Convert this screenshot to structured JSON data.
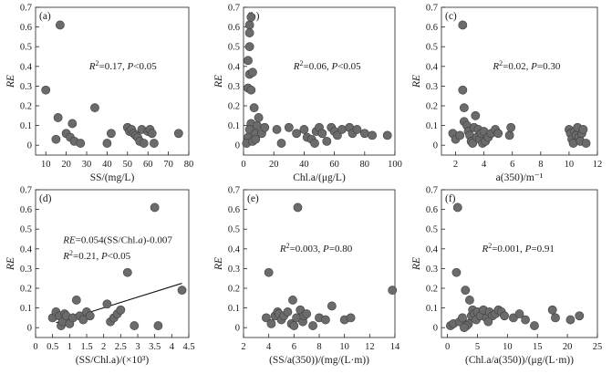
{
  "chart_data": [
    {
      "type": "scatter",
      "panel_label": "(a)",
      "xlabel": "SS/(mg/L)",
      "ylabel": "RE",
      "xlim": [
        5,
        80
      ],
      "xticks": [
        10,
        20,
        30,
        40,
        50,
        60,
        70,
        80
      ],
      "ylim": [
        -0.05,
        0.7
      ],
      "yticks": [
        0,
        0.1,
        0.2,
        0.3,
        0.4,
        0.5,
        0.6,
        0.7
      ],
      "stat_r2": "0.17",
      "stat_p": "P<0.05",
      "points": [
        [
          10,
          0.28
        ],
        [
          15,
          0.03
        ],
        [
          16,
          0.14
        ],
        [
          17,
          0.61
        ],
        [
          20,
          0.06
        ],
        [
          22,
          0.04
        ],
        [
          23,
          0.11
        ],
        [
          24,
          0.02
        ],
        [
          27,
          0.01
        ],
        [
          34,
          0.19
        ],
        [
          40,
          0.01
        ],
        [
          42,
          0.06
        ],
        [
          50,
          0.09
        ],
        [
          51,
          0.07
        ],
        [
          52,
          0.08
        ],
        [
          53,
          0.06
        ],
        [
          54,
          0.05
        ],
        [
          55,
          0.04
        ],
        [
          56,
          0.02
        ],
        [
          57,
          0.08
        ],
        [
          58,
          0.01
        ],
        [
          60,
          0.07
        ],
        [
          61,
          0.08
        ],
        [
          62,
          0.06
        ],
        [
          63,
          0.01
        ],
        [
          75,
          0.06
        ]
      ]
    },
    {
      "type": "scatter",
      "panel_label": "(b)",
      "xlabel": "Chl.a/(μg/L)",
      "ylabel": "RE",
      "xlim": [
        0,
        100
      ],
      "xticks": [
        0,
        20,
        40,
        60,
        80,
        100
      ],
      "ylim": [
        -0.05,
        0.7
      ],
      "yticks": [
        0,
        0.1,
        0.2,
        0.3,
        0.4,
        0.5,
        0.6,
        0.7
      ],
      "stat_r2": "0.06",
      "stat_p": "P<0.05",
      "points": [
        [
          4,
          0.61
        ],
        [
          5,
          0.65
        ],
        [
          4,
          0.57
        ],
        [
          4,
          0.5
        ],
        [
          3,
          0.43
        ],
        [
          4,
          0.36
        ],
        [
          3,
          0.29
        ],
        [
          5,
          0.28
        ],
        [
          6,
          0.37
        ],
        [
          7,
          0.19
        ],
        [
          5,
          0.11
        ],
        [
          4,
          0.08
        ],
        [
          3,
          0.04
        ],
        [
          2,
          0.01
        ],
        [
          6,
          0.02
        ],
        [
          8,
          0.06
        ],
        [
          9,
          0.1
        ],
        [
          10,
          0.14
        ],
        [
          12,
          0.06
        ],
        [
          14,
          0.09
        ],
        [
          8,
          0.03
        ],
        [
          22,
          0.08
        ],
        [
          25,
          0.01
        ],
        [
          30,
          0.09
        ],
        [
          35,
          0.06
        ],
        [
          40,
          0.08
        ],
        [
          42,
          0.04
        ],
        [
          45,
          0.03
        ],
        [
          47,
          0.01
        ],
        [
          48,
          0.07
        ],
        [
          50,
          0.09
        ],
        [
          52,
          0.06
        ],
        [
          55,
          0.02
        ],
        [
          58,
          0.09
        ],
        [
          60,
          0.07
        ],
        [
          62,
          0.05
        ],
        [
          65,
          0.08
        ],
        [
          70,
          0.09
        ],
        [
          72,
          0.06
        ],
        [
          75,
          0.08
        ],
        [
          80,
          0.06
        ],
        [
          85,
          0.05
        ],
        [
          95,
          0.05
        ]
      ]
    },
    {
      "type": "scatter",
      "panel_label": "(c)",
      "xlabel": "a(350)/m⁻¹",
      "ylabel": "RE",
      "xlim": [
        1,
        12
      ],
      "xticks": [
        2,
        4,
        6,
        8,
        10,
        12
      ],
      "ylim": [
        -0.05,
        0.7
      ],
      "yticks": [
        0,
        0.1,
        0.2,
        0.3,
        0.4,
        0.5,
        0.6,
        0.7
      ],
      "stat_r2": "0.02",
      "stat_p": "P=0.30",
      "points": [
        [
          1.8,
          0.06
        ],
        [
          2.0,
          0.03
        ],
        [
          2.3,
          0.05
        ],
        [
          2.5,
          0.61
        ],
        [
          2.5,
          0.28
        ],
        [
          2.6,
          0.19
        ],
        [
          2.6,
          0.12
        ],
        [
          2.8,
          0.1
        ],
        [
          2.9,
          0.07
        ],
        [
          3.0,
          0.05
        ],
        [
          3.1,
          0.02
        ],
        [
          3.2,
          0.01
        ],
        [
          3.3,
          0.09
        ],
        [
          3.4,
          0.15
        ],
        [
          3.5,
          0.04
        ],
        [
          3.6,
          0.08
        ],
        [
          3.7,
          0.03
        ],
        [
          3.8,
          0.06
        ],
        [
          3.9,
          0.01
        ],
        [
          4.0,
          0.07
        ],
        [
          4.1,
          0.02
        ],
        [
          4.3,
          0.04
        ],
        [
          4.5,
          0.06
        ],
        [
          4.8,
          0.08
        ],
        [
          5.0,
          0.06
        ],
        [
          5.8,
          0.05
        ],
        [
          5.9,
          0.09
        ],
        [
          10.0,
          0.08
        ],
        [
          10.1,
          0.06
        ],
        [
          10.2,
          0.03
        ],
        [
          10.3,
          0.01
        ],
        [
          10.4,
          0.07
        ],
        [
          10.5,
          0.05
        ],
        [
          10.6,
          0.09
        ],
        [
          10.7,
          0.04
        ],
        [
          10.8,
          0.02
        ],
        [
          10.9,
          0.06
        ],
        [
          11.0,
          0.08
        ],
        [
          11.2,
          0.01
        ]
      ]
    },
    {
      "type": "scatter",
      "panel_label": "(d)",
      "xlabel": "(SS/Chl.a)/(×10³)",
      "ylabel": "RE",
      "xlim": [
        0,
        4.5
      ],
      "xticks": [
        0,
        0.5,
        1.0,
        1.5,
        2.0,
        2.5,
        3.0,
        3.5,
        4.0,
        4.5
      ],
      "ylim": [
        -0.05,
        0.7
      ],
      "yticks": [
        0,
        0.1,
        0.2,
        0.3,
        0.4,
        0.5,
        0.6,
        0.7
      ],
      "equation": "RE=0.054(SS/Chl.a)-0.007",
      "stat_r2": "0.21",
      "stat_p": "P<0.05",
      "fit_line": {
        "x1": 0.6,
        "x2": 4.3
      },
      "points": [
        [
          0.5,
          0.05
        ],
        [
          0.6,
          0.08
        ],
        [
          0.7,
          0.06
        ],
        [
          0.75,
          0.01
        ],
        [
          0.8,
          0.03
        ],
        [
          0.85,
          0.07
        ],
        [
          0.9,
          0.06
        ],
        [
          1.0,
          0.02
        ],
        [
          1.1,
          0.05
        ],
        [
          1.2,
          0.14
        ],
        [
          1.3,
          0.06
        ],
        [
          1.4,
          0.04
        ],
        [
          1.5,
          0.08
        ],
        [
          1.6,
          0.06
        ],
        [
          2.1,
          0.12
        ],
        [
          2.2,
          0.03
        ],
        [
          2.3,
          0.05
        ],
        [
          2.4,
          0.07
        ],
        [
          2.5,
          0.09
        ],
        [
          2.7,
          0.28
        ],
        [
          2.9,
          0.01
        ],
        [
          3.5,
          0.61
        ],
        [
          3.6,
          0.01
        ],
        [
          4.3,
          0.19
        ]
      ]
    },
    {
      "type": "scatter",
      "panel_label": "(e)",
      "xlabel": "(SS/a(350))/(mg/(L·m))",
      "ylabel": "RE",
      "xlim": [
        2,
        14
      ],
      "xticks": [
        2,
        4,
        6,
        8,
        10,
        12,
        14
      ],
      "ylim": [
        -0.05,
        0.7
      ],
      "yticks": [
        0,
        0.1,
        0.2,
        0.3,
        0.4,
        0.5,
        0.6,
        0.7
      ],
      "stat_r2": "0.003",
      "stat_p": "P=0.80",
      "points": [
        [
          3.8,
          0.05
        ],
        [
          4.0,
          0.28
        ],
        [
          4.2,
          0.02
        ],
        [
          4.5,
          0.06
        ],
        [
          4.7,
          0.08
        ],
        [
          4.8,
          0.07
        ],
        [
          5.0,
          0.04
        ],
        [
          5.2,
          0.06
        ],
        [
          5.5,
          0.08
        ],
        [
          5.8,
          0.02
        ],
        [
          5.9,
          0.14
        ],
        [
          6.0,
          0.01
        ],
        [
          6.2,
          0.05
        ],
        [
          6.3,
          0.61
        ],
        [
          6.5,
          0.09
        ],
        [
          6.7,
          0.03
        ],
        [
          6.8,
          0.06
        ],
        [
          7.0,
          0.07
        ],
        [
          7.5,
          0.01
        ],
        [
          8.0,
          0.05
        ],
        [
          8.5,
          0.04
        ],
        [
          9.0,
          0.11
        ],
        [
          10.0,
          0.04
        ],
        [
          10.5,
          0.05
        ],
        [
          13.8,
          0.19
        ]
      ]
    },
    {
      "type": "scatter",
      "panel_label": "(f)",
      "xlabel": "(Chl.a/a(350))/(μg/(L·m))",
      "ylabel": "RE",
      "xlim": [
        -1,
        25
      ],
      "xticks": [
        0,
        5,
        10,
        15,
        20,
        25
      ],
      "ylim": [
        -0.05,
        0.7
      ],
      "yticks": [
        0,
        0.1,
        0.2,
        0.3,
        0.4,
        0.5,
        0.6,
        0.7
      ],
      "stat_r2": "0.001",
      "stat_p": "P=0.91",
      "points": [
        [
          0.5,
          0.01
        ],
        [
          1.0,
          0.02
        ],
        [
          1.5,
          0.28
        ],
        [
          1.7,
          0.61
        ],
        [
          2.0,
          0.03
        ],
        [
          2.5,
          0.05
        ],
        [
          3.0,
          0.19
        ],
        [
          3.5,
          0.02
        ],
        [
          3.7,
          0.14
        ],
        [
          4.0,
          0.06
        ],
        [
          4.2,
          0.09
        ],
        [
          4.5,
          0.07
        ],
        [
          4.8,
          0.04
        ],
        [
          5.0,
          0.08
        ],
        [
          5.5,
          0.06
        ],
        [
          6.0,
          0.09
        ],
        [
          6.5,
          0.05
        ],
        [
          7.0,
          0.08
        ],
        [
          7.5,
          0.06
        ],
        [
          8.0,
          0.07
        ],
        [
          8.5,
          0.09
        ],
        [
          9.0,
          0.08
        ],
        [
          9.5,
          0.06
        ],
        [
          11.0,
          0.05
        ],
        [
          12.0,
          0.07
        ],
        [
          13.0,
          0.04
        ],
        [
          14.5,
          0.01
        ],
        [
          17.5,
          0.09
        ],
        [
          18.0,
          0.05
        ],
        [
          20.5,
          0.04
        ],
        [
          22.0,
          0.06
        ],
        [
          3.2,
          0.01
        ],
        [
          2.8,
          0.0
        ],
        [
          6.8,
          0.03
        ]
      ]
    }
  ]
}
